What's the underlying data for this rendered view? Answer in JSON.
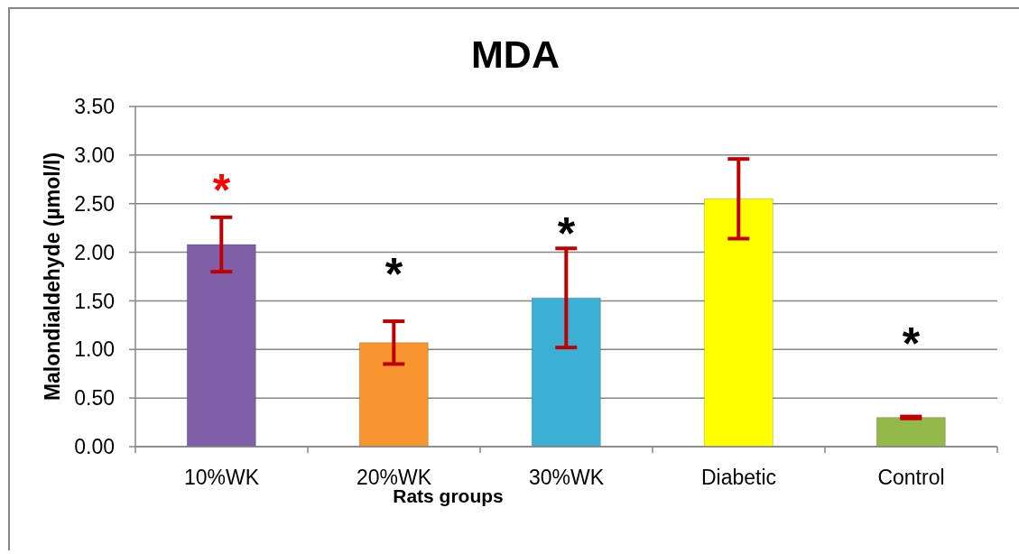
{
  "chart_data": {
    "type": "bar",
    "title": "MDA",
    "xlabel": "Rats groups",
    "ylabel": "Malondialdehyde (µmol/l)",
    "categories": [
      "10%WK",
      "20%WK",
      "30%WK",
      "Diabetic",
      "Control"
    ],
    "values": [
      2.08,
      1.07,
      1.53,
      2.55,
      0.3
    ],
    "errors": [
      0.28,
      0.22,
      0.51,
      0.41,
      0.01
    ],
    "colors": [
      "#7f5fa8",
      "#f7962e",
      "#3cb0d4",
      "#ffff00",
      "#94b84a"
    ],
    "ylim": [
      0,
      3.5
    ],
    "yticks": [
      {
        "value": 0,
        "label": "0.00"
      },
      {
        "value": 0.5,
        "label": "0.50"
      },
      {
        "value": 1,
        "label": "1.00"
      },
      {
        "value": 1.5,
        "label": "1.50"
      },
      {
        "value": 2,
        "label": "2.00"
      },
      {
        "value": 2.5,
        "label": "2.50"
      },
      {
        "value": 3,
        "label": "3.00"
      },
      {
        "value": 3.5,
        "label": "3.50"
      }
    ],
    "grid": "y",
    "annotations": [
      "*",
      "*",
      "*",
      "*"
    ]
  }
}
